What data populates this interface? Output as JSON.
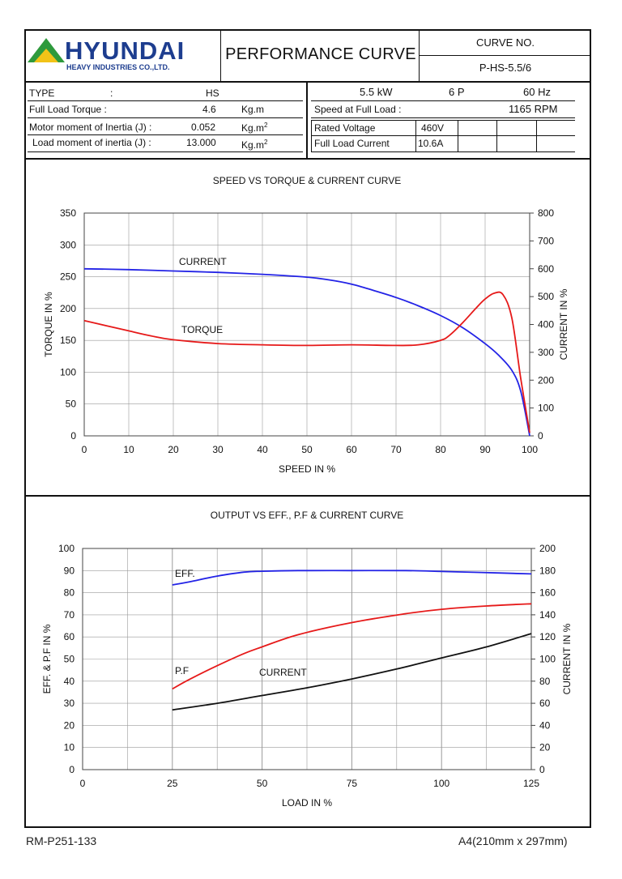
{
  "header": {
    "logo_text": "HYUNDAI",
    "logo_sub": "HEAVY INDUSTRIES CO.,LTD.",
    "title": "PERFORMANCE CURVE",
    "curve_no_label": "CURVE NO.",
    "curve_no": "P-HS-5.5/6"
  },
  "specs_left": {
    "type_label": "TYPE",
    "type_colon": ":",
    "type_value": "HS",
    "torque_label": "Full Load Torque :",
    "torque_value": "4.6",
    "torque_unit": "Kg.m",
    "motor_inertia_label": "Motor moment of Inertia (J) :",
    "motor_inertia_value": "0.052",
    "motor_inertia_unit": "Kg.m",
    "load_inertia_label": "Load moment of inertia (J) :",
    "load_inertia_value": "13.000",
    "load_inertia_unit": "Kg.m",
    "unit_sup": "2"
  },
  "specs_right": {
    "kw_value": "5.5",
    "kw_unit": "kW",
    "pole_value": "6",
    "pole_unit": "P",
    "hz_value": "60",
    "hz_unit": "Hz",
    "speed_label": "Speed at Full Load :",
    "speed_value": "1165",
    "speed_unit": "RPM",
    "voltage_label": "Rated Voltage",
    "voltage_value": "460V",
    "current_label": "Full Load Current",
    "current_value": "10.6A"
  },
  "footer": {
    "left": "RM-P251-133",
    "right": "A4(210mm x 297mm)"
  },
  "colors": {
    "blue": "#2323e6",
    "red": "#e61919",
    "black": "#111111",
    "logo_green": "#2e9a3c",
    "logo_blue": "#1d3d8f"
  },
  "chart_data": [
    {
      "type": "line",
      "title": "SPEED VS TORQUE & CURRENT CURVE",
      "xlabel": "SPEED IN %",
      "ylabel": "TORQUE IN %",
      "y2label": "CURRENT IN %",
      "xlim": [
        0,
        100
      ],
      "ylim": [
        0,
        350
      ],
      "y2lim": [
        0,
        800
      ],
      "xticks": [
        "0",
        "10",
        "20",
        "30",
        "40",
        "50",
        "60",
        "70",
        "80",
        "90",
        "100"
      ],
      "yticks": [
        "0",
        "50",
        "100",
        "150",
        "200",
        "250",
        "300",
        "350"
      ],
      "y2ticks": [
        "0",
        "100",
        "200",
        "300",
        "400",
        "500",
        "600",
        "700",
        "800"
      ],
      "grid": true,
      "series": [
        {
          "name": "CURRENT",
          "axis": "y2",
          "color": "#2323e6",
          "x": [
            0,
            10,
            20,
            30,
            40,
            50,
            55,
            60,
            65,
            70,
            75,
            80,
            85,
            90,
            93,
            96,
            98,
            100
          ],
          "y": [
            600,
            597,
            592,
            587,
            580,
            570,
            560,
            545,
            522,
            497,
            467,
            432,
            388,
            331,
            290,
            235,
            160,
            0
          ]
        },
        {
          "name": "TORQUE",
          "axis": "y",
          "color": "#e61919",
          "x": [
            0,
            5,
            10,
            15,
            20,
            30,
            40,
            50,
            60,
            70,
            75,
            80,
            82,
            85,
            88,
            90,
            92,
            94,
            96,
            98,
            100
          ],
          "y": [
            181,
            173,
            165,
            157,
            151,
            145,
            143,
            142,
            143,
            142,
            143,
            150,
            158,
            178,
            201,
            215,
            224,
            222,
            185,
            90,
            5
          ]
        }
      ],
      "annotations": [
        "CURRENT",
        "TORQUE"
      ]
    },
    {
      "type": "line",
      "title": "OUTPUT VS EFF., P.F & CURRENT CURVE",
      "xlabel": "LOAD IN %",
      "ylabel": "EFF. & P.F IN %",
      "y2label": "CURRENT IN %",
      "xlim": [
        0,
        125
      ],
      "ylim": [
        0,
        100
      ],
      "y2lim": [
        0,
        200
      ],
      "xticks": [
        "0",
        "25",
        "50",
        "75",
        "100",
        "125"
      ],
      "yticks": [
        "0",
        "10",
        "20",
        "30",
        "40",
        "50",
        "60",
        "70",
        "80",
        "90",
        "100"
      ],
      "y2ticks": [
        "0",
        "20",
        "40",
        "60",
        "80",
        "100",
        "120",
        "140",
        "160",
        "180",
        "200"
      ],
      "grid": true,
      "series": [
        {
          "name": "EFF.",
          "axis": "y",
          "color": "#2323e6",
          "x": [
            25,
            30,
            37.5,
            45,
            50,
            60,
            75,
            90,
            100,
            110,
            125
          ],
          "y": [
            83.5,
            85,
            87.5,
            89.3,
            89.7,
            90,
            90,
            90,
            89.6,
            89.2,
            88.5
          ]
        },
        {
          "name": "P.F",
          "axis": "y",
          "color": "#e61919",
          "x": [
            25,
            30,
            37.5,
            45,
            50,
            60,
            75,
            90,
            100,
            112.5,
            125
          ],
          "y": [
            36.5,
            41,
            47,
            52.5,
            55.5,
            61,
            66.5,
            70.5,
            72.5,
            74,
            75
          ]
        },
        {
          "name": "CURRENT",
          "axis": "y2",
          "color": "#111111",
          "x": [
            25,
            37.5,
            50,
            62.5,
            75,
            87.5,
            100,
            112.5,
            125
          ],
          "y": [
            54,
            60,
            67,
            74,
            82,
            91,
            101,
            111,
            123
          ]
        }
      ],
      "annotations": [
        "EFF.",
        "P.F",
        "CURRENT"
      ]
    }
  ]
}
